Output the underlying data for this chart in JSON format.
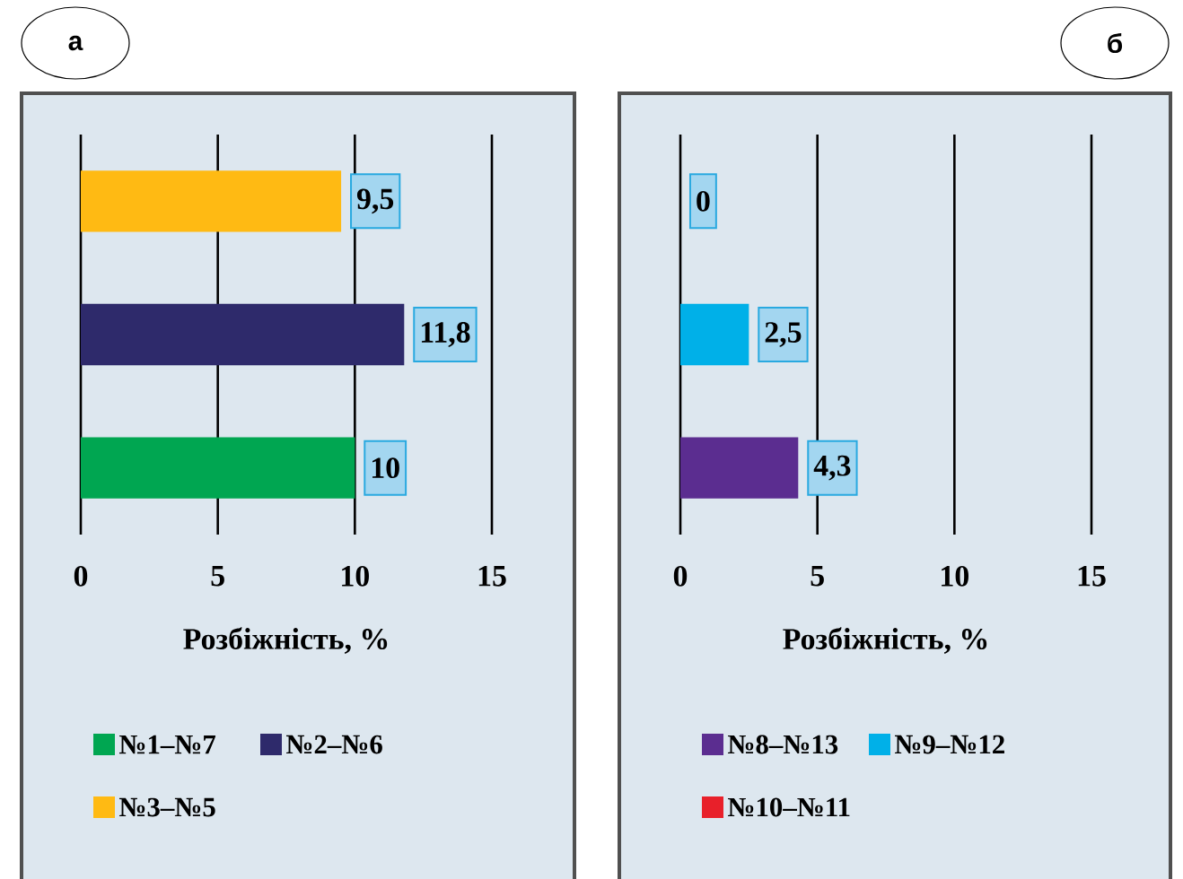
{
  "chart_data": [
    {
      "type": "bar",
      "orientation": "horizontal",
      "title": "а",
      "xlabel": "Розбіжність, %",
      "categories": [
        null,
        null,
        null
      ],
      "xlim": [
        0,
        15
      ],
      "xticks": [
        0,
        5,
        10,
        15
      ],
      "grid": "x",
      "legend": "bottom",
      "series": [
        {
          "name": "№1–№7",
          "color": "#00a651",
          "values": [
            null,
            null,
            10
          ],
          "value_labels": [
            null,
            null,
            "10"
          ]
        },
        {
          "name": "№2–№6",
          "color": "#2e2a6b",
          "values": [
            null,
            11.8,
            null
          ],
          "value_labels": [
            null,
            "11,8",
            null
          ]
        },
        {
          "name": "№3–№5",
          "color": "#ffba13",
          "values": [
            9.5,
            null,
            null
          ],
          "value_labels": [
            "9,5",
            null,
            null
          ]
        }
      ]
    },
    {
      "type": "bar",
      "orientation": "horizontal",
      "title": "б",
      "xlabel": "Розбіжність, %",
      "categories": [
        null,
        null,
        null
      ],
      "xlim": [
        0,
        15
      ],
      "xticks": [
        0,
        5,
        10,
        15
      ],
      "grid": "x",
      "legend": "bottom",
      "series": [
        {
          "name": "№8–№13",
          "color": "#5b2d90",
          "values": [
            null,
            null,
            4.3
          ],
          "value_labels": [
            null,
            null,
            "4,3"
          ]
        },
        {
          "name": "№9–№12",
          "color": "#00b0e8",
          "values": [
            null,
            2.5,
            null
          ],
          "value_labels": [
            null,
            "2,5",
            null
          ]
        },
        {
          "name": "№10–№11",
          "color": "#e8202a",
          "values": [
            0,
            null,
            null
          ],
          "value_labels": [
            "0",
            null,
            null
          ]
        }
      ]
    }
  ]
}
